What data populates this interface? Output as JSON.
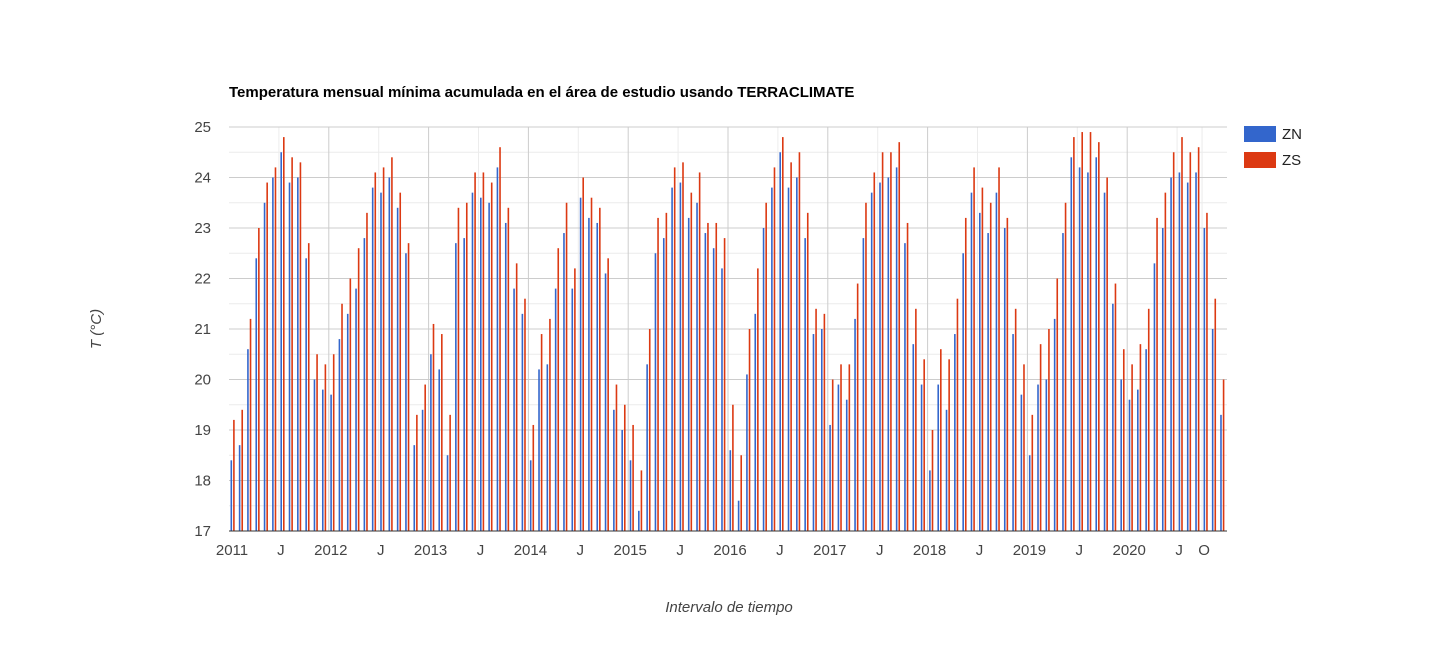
{
  "chart_data": {
    "type": "bar",
    "title": "Temperatura mensual mínima acumulada en el área de estudio usando TERRACLIMATE",
    "xlabel": "Intervalo de tiempo",
    "ylabel": "T (°C)",
    "ylim": [
      17,
      25
    ],
    "yticks": [
      "17",
      "18",
      "19",
      "20",
      "21",
      "22",
      "23",
      "24",
      "25"
    ],
    "grid": true,
    "legend_position": "right",
    "x_start": "2011-01",
    "x_ticks": [
      {
        "month_index": 0,
        "label": "2011"
      },
      {
        "month_index": 6,
        "label": "J"
      },
      {
        "month_index": 12,
        "label": "2012"
      },
      {
        "month_index": 18,
        "label": "J"
      },
      {
        "month_index": 24,
        "label": "2013"
      },
      {
        "month_index": 30,
        "label": "J"
      },
      {
        "month_index": 36,
        "label": "2014"
      },
      {
        "month_index": 42,
        "label": "J"
      },
      {
        "month_index": 48,
        "label": "2015"
      },
      {
        "month_index": 54,
        "label": "J"
      },
      {
        "month_index": 60,
        "label": "2016"
      },
      {
        "month_index": 66,
        "label": "J"
      },
      {
        "month_index": 72,
        "label": "2017"
      },
      {
        "month_index": 78,
        "label": "J"
      },
      {
        "month_index": 84,
        "label": "2018"
      },
      {
        "month_index": 90,
        "label": "J"
      },
      {
        "month_index": 96,
        "label": "2019"
      },
      {
        "month_index": 102,
        "label": "J"
      },
      {
        "month_index": 108,
        "label": "2020"
      },
      {
        "month_index": 114,
        "label": "J"
      },
      {
        "month_index": 117,
        "label": "O"
      }
    ],
    "series": [
      {
        "name": "ZN",
        "color": "#3366cc",
        "values": [
          18.4,
          18.7,
          20.6,
          22.4,
          23.5,
          24.0,
          24.5,
          23.9,
          24.0,
          22.4,
          20.0,
          19.8,
          19.7,
          20.8,
          21.3,
          21.8,
          22.8,
          23.8,
          23.7,
          24.0,
          23.4,
          22.5,
          18.7,
          19.4,
          20.5,
          20.2,
          18.5,
          22.7,
          22.8,
          23.7,
          23.6,
          23.5,
          24.2,
          23.1,
          21.8,
          21.3,
          18.4,
          20.2,
          20.3,
          21.8,
          22.9,
          21.8,
          23.6,
          23.2,
          23.1,
          22.1,
          19.4,
          19.0,
          18.4,
          17.4,
          20.3,
          22.5,
          22.8,
          23.8,
          23.9,
          23.2,
          23.5,
          22.9,
          22.6,
          22.2,
          18.6,
          17.6,
          20.1,
          21.3,
          23.0,
          23.8,
          24.5,
          23.8,
          24.0,
          22.8,
          20.9,
          21.0,
          19.1,
          19.9,
          19.6,
          21.2,
          22.8,
          23.7,
          23.9,
          24.0,
          24.2,
          22.7,
          20.7,
          19.9,
          18.2,
          19.9,
          19.4,
          20.9,
          22.5,
          23.7,
          23.3,
          22.9,
          23.7,
          23.0,
          20.9,
          19.7,
          18.5,
          19.9,
          20.0,
          21.2,
          22.9,
          24.4,
          24.2,
          24.1,
          24.4,
          23.7,
          21.5,
          20.0,
          19.6,
          19.8,
          20.6,
          22.3,
          23.0,
          24.0,
          24.1,
          23.9,
          24.1,
          23.0,
          21.0,
          19.3
        ]
      },
      {
        "name": "ZS",
        "color": "#dc3912",
        "values": [
          19.2,
          19.4,
          21.2,
          23.0,
          23.9,
          24.2,
          24.8,
          24.4,
          24.3,
          22.7,
          20.5,
          20.3,
          20.5,
          21.5,
          22.0,
          22.6,
          23.3,
          24.1,
          24.2,
          24.4,
          23.7,
          22.7,
          19.3,
          19.9,
          21.1,
          20.9,
          19.3,
          23.4,
          23.5,
          24.1,
          24.1,
          23.9,
          24.6,
          23.4,
          22.3,
          21.6,
          19.1,
          20.9,
          21.2,
          22.6,
          23.5,
          22.2,
          24.0,
          23.6,
          23.4,
          22.4,
          19.9,
          19.5,
          19.1,
          18.2,
          21.0,
          23.2,
          23.3,
          24.2,
          24.3,
          23.7,
          24.1,
          23.1,
          23.1,
          22.8,
          19.5,
          18.5,
          21.0,
          22.2,
          23.5,
          24.2,
          24.8,
          24.3,
          24.5,
          23.3,
          21.4,
          21.3,
          20.0,
          20.3,
          20.3,
          21.9,
          23.5,
          24.1,
          24.5,
          24.5,
          24.7,
          23.1,
          21.4,
          20.4,
          19.0,
          20.6,
          20.4,
          21.6,
          23.2,
          24.2,
          23.8,
          23.5,
          24.2,
          23.2,
          21.4,
          20.3,
          19.3,
          20.7,
          21.0,
          22.0,
          23.5,
          24.8,
          24.9,
          24.9,
          24.7,
          24.0,
          21.9,
          20.6,
          20.3,
          20.7,
          21.4,
          23.2,
          23.7,
          24.5,
          24.8,
          24.5,
          24.6,
          23.3,
          21.6,
          20.0
        ]
      }
    ]
  }
}
